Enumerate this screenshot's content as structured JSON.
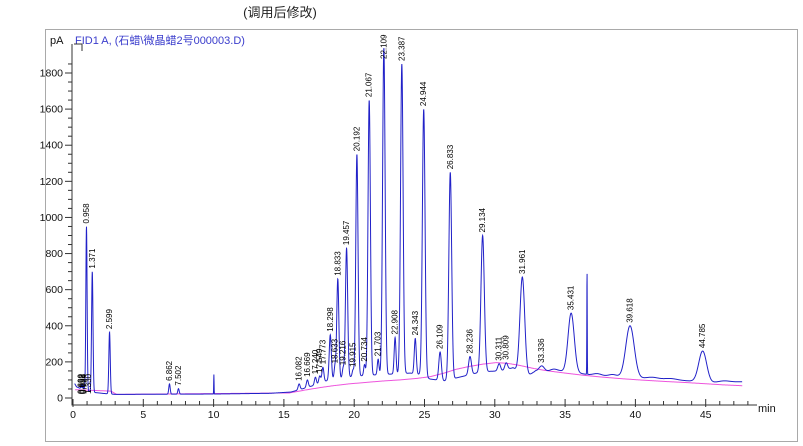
{
  "title": "(调用后修改)",
  "header": {
    "signal_label": "FID1 A,  (石蜡\\微晶蜡2号000003.D)"
  },
  "axes": {
    "y_unit": "pA",
    "x_unit": "min"
  },
  "colors": {
    "trace": "#2121c8",
    "baseline": "#ee55dd",
    "axis": "#333333",
    "peak_label": "#000000",
    "header_text": "#3a3ccc",
    "panel_border": "#a9a9a9"
  },
  "chart_data": {
    "type": "line",
    "title": "(调用后修改)",
    "signal": "FID1 A,  (石蜡\\微晶蜡2号000003.D)",
    "xlabel": "min",
    "ylabel": "pA",
    "xlim": [
      0,
      48.5
    ],
    "ylim": [
      0,
      1960
    ],
    "x_ticks": [
      0,
      5,
      10,
      15,
      20,
      25,
      30,
      35,
      40,
      45
    ],
    "x_minor_step": 1,
    "x_minor_max": 48,
    "y_ticks": [
      0,
      200,
      400,
      600,
      800,
      1000,
      1200,
      1400,
      1600,
      1800
    ],
    "y_minor_step": 50,
    "y_minor_max": 1850,
    "grid": false,
    "legend": false,
    "peaks": [
      {
        "t": 0.55,
        "apex": 60,
        "s": 0.025
      },
      {
        "t": 0.63,
        "apex": 78,
        "s": 0.025
      },
      {
        "t": 0.72,
        "apex": 70,
        "s": 0.025
      },
      {
        "t": 0.82,
        "apex": 55,
        "s": 0.03
      },
      {
        "t": 0.958,
        "apex": 950,
        "s": 0.045,
        "label": "0.958"
      },
      {
        "t": 1.371,
        "apex": 700,
        "s": 0.05,
        "label": "1.371"
      },
      {
        "t": 2.599,
        "apex": 365,
        "s": 0.05,
        "label": "2.599"
      },
      {
        "t": 6.862,
        "apex": 78,
        "s": 0.05,
        "label": "6.862"
      },
      {
        "t": 7.502,
        "apex": 52,
        "s": 0.05,
        "label": "7.502"
      },
      {
        "t": 10.02,
        "apex": 130,
        "s": 0.013
      },
      {
        "t": 16.082,
        "apex": 78,
        "s": 0.07,
        "label": "16.082"
      },
      {
        "t": 16.669,
        "apex": 100,
        "s": 0.07,
        "label": "16.669"
      },
      {
        "t": 17.24,
        "apex": 115,
        "s": 0.07,
        "label": "17.240"
      },
      {
        "t": 17.549,
        "apex": 122,
        "s": 0.07,
        "label": "17.549"
      },
      {
        "t": 17.773,
        "apex": 170,
        "s": 0.07,
        "label": "17.773"
      },
      {
        "t": 18.298,
        "apex": 350,
        "s": 0.075,
        "label": "18.298"
      },
      {
        "t": 18.633,
        "apex": 175,
        "s": 0.06,
        "label": "18.633"
      },
      {
        "t": 18.833,
        "apex": 660,
        "s": 0.075,
        "label": "18.833"
      },
      {
        "t": 19.216,
        "apex": 165,
        "s": 0.06,
        "label": "19.216"
      },
      {
        "t": 19.457,
        "apex": 830,
        "s": 0.08,
        "label": "19.457"
      },
      {
        "t": 19.915,
        "apex": 155,
        "s": 0.06,
        "label": "19.915"
      },
      {
        "t": 20.192,
        "apex": 1350,
        "s": 0.08,
        "label": "20.192"
      },
      {
        "t": 20.734,
        "apex": 185,
        "s": 0.06,
        "label": "20.734"
      },
      {
        "t": 21.067,
        "apex": 1650,
        "s": 0.085,
        "label": "21.067"
      },
      {
        "t": 21.703,
        "apex": 215,
        "s": 0.06,
        "label": "21.703"
      },
      {
        "t": 22.109,
        "apex": 1940,
        "s": 0.09,
        "label": "22.109"
      },
      {
        "t": 22.908,
        "apex": 335,
        "s": 0.065,
        "label": "22.908"
      },
      {
        "t": 23.387,
        "apex": 1850,
        "s": 0.09,
        "label": "23.387"
      },
      {
        "t": 24.343,
        "apex": 330,
        "s": 0.07,
        "label": "24.343"
      },
      {
        "t": 24.944,
        "apex": 1600,
        "s": 0.095,
        "label": "24.944"
      },
      {
        "t": 26.109,
        "apex": 255,
        "s": 0.09,
        "label": "26.109"
      },
      {
        "t": 26.833,
        "apex": 1250,
        "s": 0.1,
        "label": "26.833"
      },
      {
        "t": 28.236,
        "apex": 230,
        "s": 0.1,
        "label": "28.236"
      },
      {
        "t": 29.134,
        "apex": 900,
        "s": 0.12,
        "label": "29.134"
      },
      {
        "t": 30.311,
        "apex": 190,
        "s": 0.1,
        "label": "30.311"
      },
      {
        "t": 30.809,
        "apex": 195,
        "s": 0.1,
        "label": "30.809"
      },
      {
        "t": 31.961,
        "apex": 670,
        "s": 0.17,
        "label": "31.961"
      },
      {
        "t": 33.336,
        "apex": 178,
        "s": 0.18,
        "label": "33.336"
      },
      {
        "t": 34.2,
        "apex": 160,
        "s": 0.25
      },
      {
        "t": 35.431,
        "apex": 470,
        "s": 0.22,
        "label": "35.431"
      },
      {
        "t": 36.56,
        "apex": 710,
        "s": 0.014
      },
      {
        "t": 37.3,
        "apex": 135,
        "s": 0.3
      },
      {
        "t": 38.4,
        "apex": 130,
        "s": 0.3
      },
      {
        "t": 39.618,
        "apex": 400,
        "s": 0.3,
        "label": "39.618"
      },
      {
        "t": 41.2,
        "apex": 115,
        "s": 0.4
      },
      {
        "t": 42.5,
        "apex": 108,
        "s": 0.4
      },
      {
        "t": 44.785,
        "apex": 260,
        "s": 0.28,
        "label": "44.785"
      },
      {
        "t": 46.3,
        "apex": 95,
        "s": 0.4
      }
    ],
    "start_cluster_labels": [
      {
        "t": 0.56,
        "label": "0.609"
      },
      {
        "t": 0.64,
        "label": "0.652"
      },
      {
        "t": 0.72,
        "label": "0.686"
      },
      {
        "t": 0.8,
        "label": "0.724"
      },
      {
        "t": 1.12,
        "label": "1.330"
      }
    ],
    "trace_floor": [
      [
        0.12,
        80
      ],
      [
        0.25,
        62
      ],
      [
        0.9,
        40
      ],
      [
        1.6,
        30
      ],
      [
        2.2,
        25
      ],
      [
        3,
        20
      ],
      [
        10,
        22
      ],
      [
        14,
        26
      ],
      [
        15.5,
        33
      ],
      [
        16.2,
        48
      ],
      [
        16.8,
        62
      ],
      [
        17.4,
        76
      ],
      [
        17.9,
        92
      ],
      [
        18.5,
        105
      ],
      [
        19.2,
        112
      ],
      [
        20,
        120
      ],
      [
        21,
        126
      ],
      [
        22,
        130
      ],
      [
        23,
        134
      ],
      [
        24,
        138
      ],
      [
        24.7,
        130
      ],
      [
        25.4,
        105
      ],
      [
        26.4,
        95
      ],
      [
        27.2,
        110
      ],
      [
        28,
        125
      ],
      [
        28.8,
        140
      ],
      [
        29.7,
        148
      ],
      [
        30.5,
        150
      ],
      [
        31.3,
        168
      ],
      [
        32.2,
        115
      ],
      [
        32.9,
        150
      ],
      [
        33.8,
        148
      ],
      [
        34.6,
        150
      ],
      [
        35.9,
        138
      ],
      [
        36.8,
        128
      ],
      [
        37.7,
        122
      ],
      [
        38.9,
        115
      ],
      [
        40.2,
        110
      ],
      [
        41.6,
        105
      ],
      [
        42.9,
        100
      ],
      [
        44.1,
        93
      ],
      [
        45.4,
        85
      ],
      [
        46.3,
        88
      ],
      [
        47.6,
        90
      ]
    ],
    "baseline": [
      [
        0.2,
        46
      ],
      [
        1.5,
        42
      ],
      [
        2.7,
        38
      ],
      [
        3.1,
        20
      ],
      [
        15.4,
        28
      ],
      [
        16.5,
        44
      ],
      [
        17.6,
        58
      ],
      [
        18.5,
        68
      ],
      [
        19.6,
        78
      ],
      [
        20.8,
        86
      ],
      [
        22,
        94
      ],
      [
        23.2,
        100
      ],
      [
        24.4,
        108
      ],
      [
        25.4,
        118
      ],
      [
        26.4,
        138
      ],
      [
        27.2,
        158
      ],
      [
        28.2,
        175
      ],
      [
        29.2,
        188
      ],
      [
        30.1,
        196
      ],
      [
        30.9,
        192
      ],
      [
        31.8,
        180
      ],
      [
        32.8,
        163
      ],
      [
        33.8,
        150
      ],
      [
        35,
        138
      ],
      [
        36.3,
        126
      ],
      [
        37.6,
        116
      ],
      [
        39,
        107
      ],
      [
        40.5,
        99
      ],
      [
        42,
        92
      ],
      [
        43.5,
        86
      ],
      [
        45,
        79
      ],
      [
        46.2,
        73
      ],
      [
        47.6,
        68
      ]
    ]
  }
}
